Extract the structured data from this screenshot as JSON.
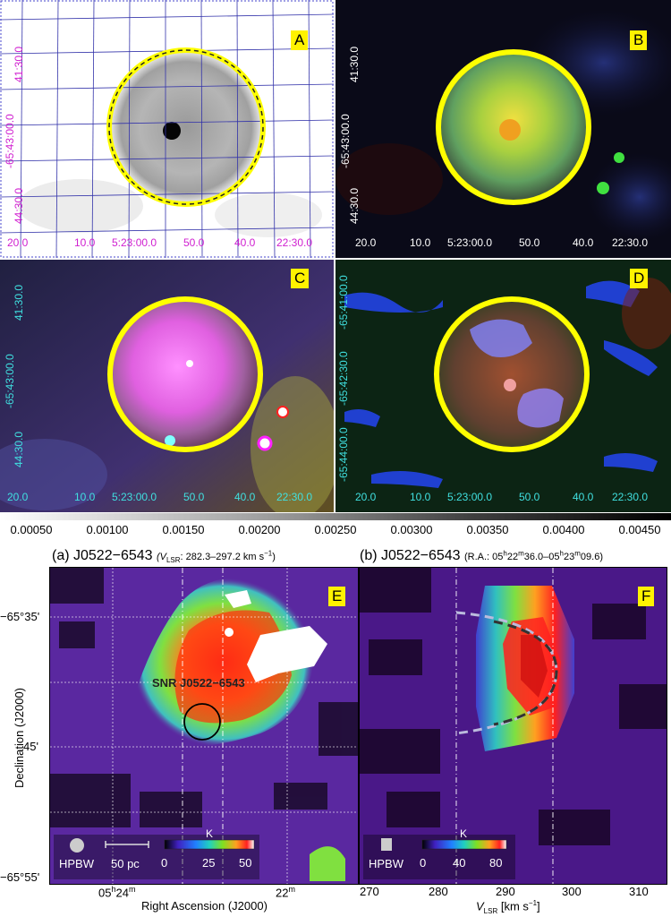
{
  "panels": {
    "A": {
      "label": "A",
      "ra_ticks": [
        "20.0",
        "10.0",
        "5:23:00.0",
        "50.0",
        "40.0",
        "22:30.0"
      ],
      "dec_ticks": [
        "41:30.0",
        "-65:43:00.0",
        "44:30.0"
      ]
    },
    "B": {
      "label": "B",
      "ra_ticks": [
        "20.0",
        "10.0",
        "5:23:00.0",
        "50.0",
        "40.0",
        "22:30.0"
      ],
      "dec_ticks": [
        "41:30.0",
        "-65:43:00.0",
        "44:30.0"
      ]
    },
    "C": {
      "label": "C",
      "ra_ticks": [
        "20.0",
        "10.0",
        "5:23:00.0",
        "50.0",
        "40.0",
        "22:30.0"
      ],
      "dec_ticks": [
        "41:30.0",
        "-65:43:00.0",
        "44:30.0"
      ]
    },
    "D": {
      "label": "D",
      "ra_ticks": [
        "20.0",
        "10.0",
        "5:23:00.0",
        "50.0",
        "40.0",
        "22:30.0"
      ],
      "dec_ticks": [
        "-65:41:00.0",
        "-65:42:30.0",
        "-65:44:00.0"
      ]
    },
    "E": {
      "label": "E"
    },
    "F": {
      "label": "F"
    }
  },
  "colorbar_top": {
    "ticks": [
      "0.00050",
      "0.00100",
      "0.00150",
      "0.00200",
      "0.00250",
      "0.00300",
      "0.00350",
      "0.00400",
      "0.00450"
    ]
  },
  "panel_e": {
    "title_main": "(a) J0522−6543",
    "title_sub": "(V",
    "title_sub_lsr": "LSR",
    "title_sub_tail": ": 282.3–297.2 km s",
    "title_sup": "−1",
    "title_close": ")",
    "dec_ticks": [
      "−65°35'",
      "45'",
      "−65°55'"
    ],
    "ra_tick_1": "05",
    "ra_tick_1_h": "h",
    "ra_tick_1_m": "24",
    "ra_tick_1_msup": "m",
    "ra_tick_2": "22",
    "ra_tick_2_msup": "m",
    "xlabel": "Right Ascension (J2000)",
    "ylabel": "Declination (J2000)",
    "snr_label": "SNR J0522−6543",
    "hpbw": "HPBW",
    "scale": "50 pc",
    "cb_unit": "K",
    "cb_ticks": [
      "0",
      "25",
      "50"
    ]
  },
  "panel_f": {
    "title_main": "(b) J0522−6543",
    "title_sub": "(R.A.: 05",
    "title_h1": "h",
    "title_m1v": "22",
    "title_m1": "m",
    "title_s1": "36.0–05",
    "title_h2": "h",
    "title_m2v": "23",
    "title_m2": "m",
    "title_s2": "09.6)",
    "xticks": [
      "270",
      "280",
      "290",
      "300",
      "310"
    ],
    "xlabel_v": "V",
    "xlabel_lsr": "LSR",
    "xlabel_tail": " [km s",
    "xlabel_sup": "−1",
    "xlabel_close": "]",
    "hpbw": "HPBW",
    "cb_unit": "K",
    "cb_ticks": [
      "0",
      "40",
      "80"
    ]
  },
  "colors": {
    "tag": "#fff200",
    "circle": "#ffff00",
    "grid": "#3333aa",
    "magenta": "#d020d0",
    "cyan": "#40e0e0"
  }
}
